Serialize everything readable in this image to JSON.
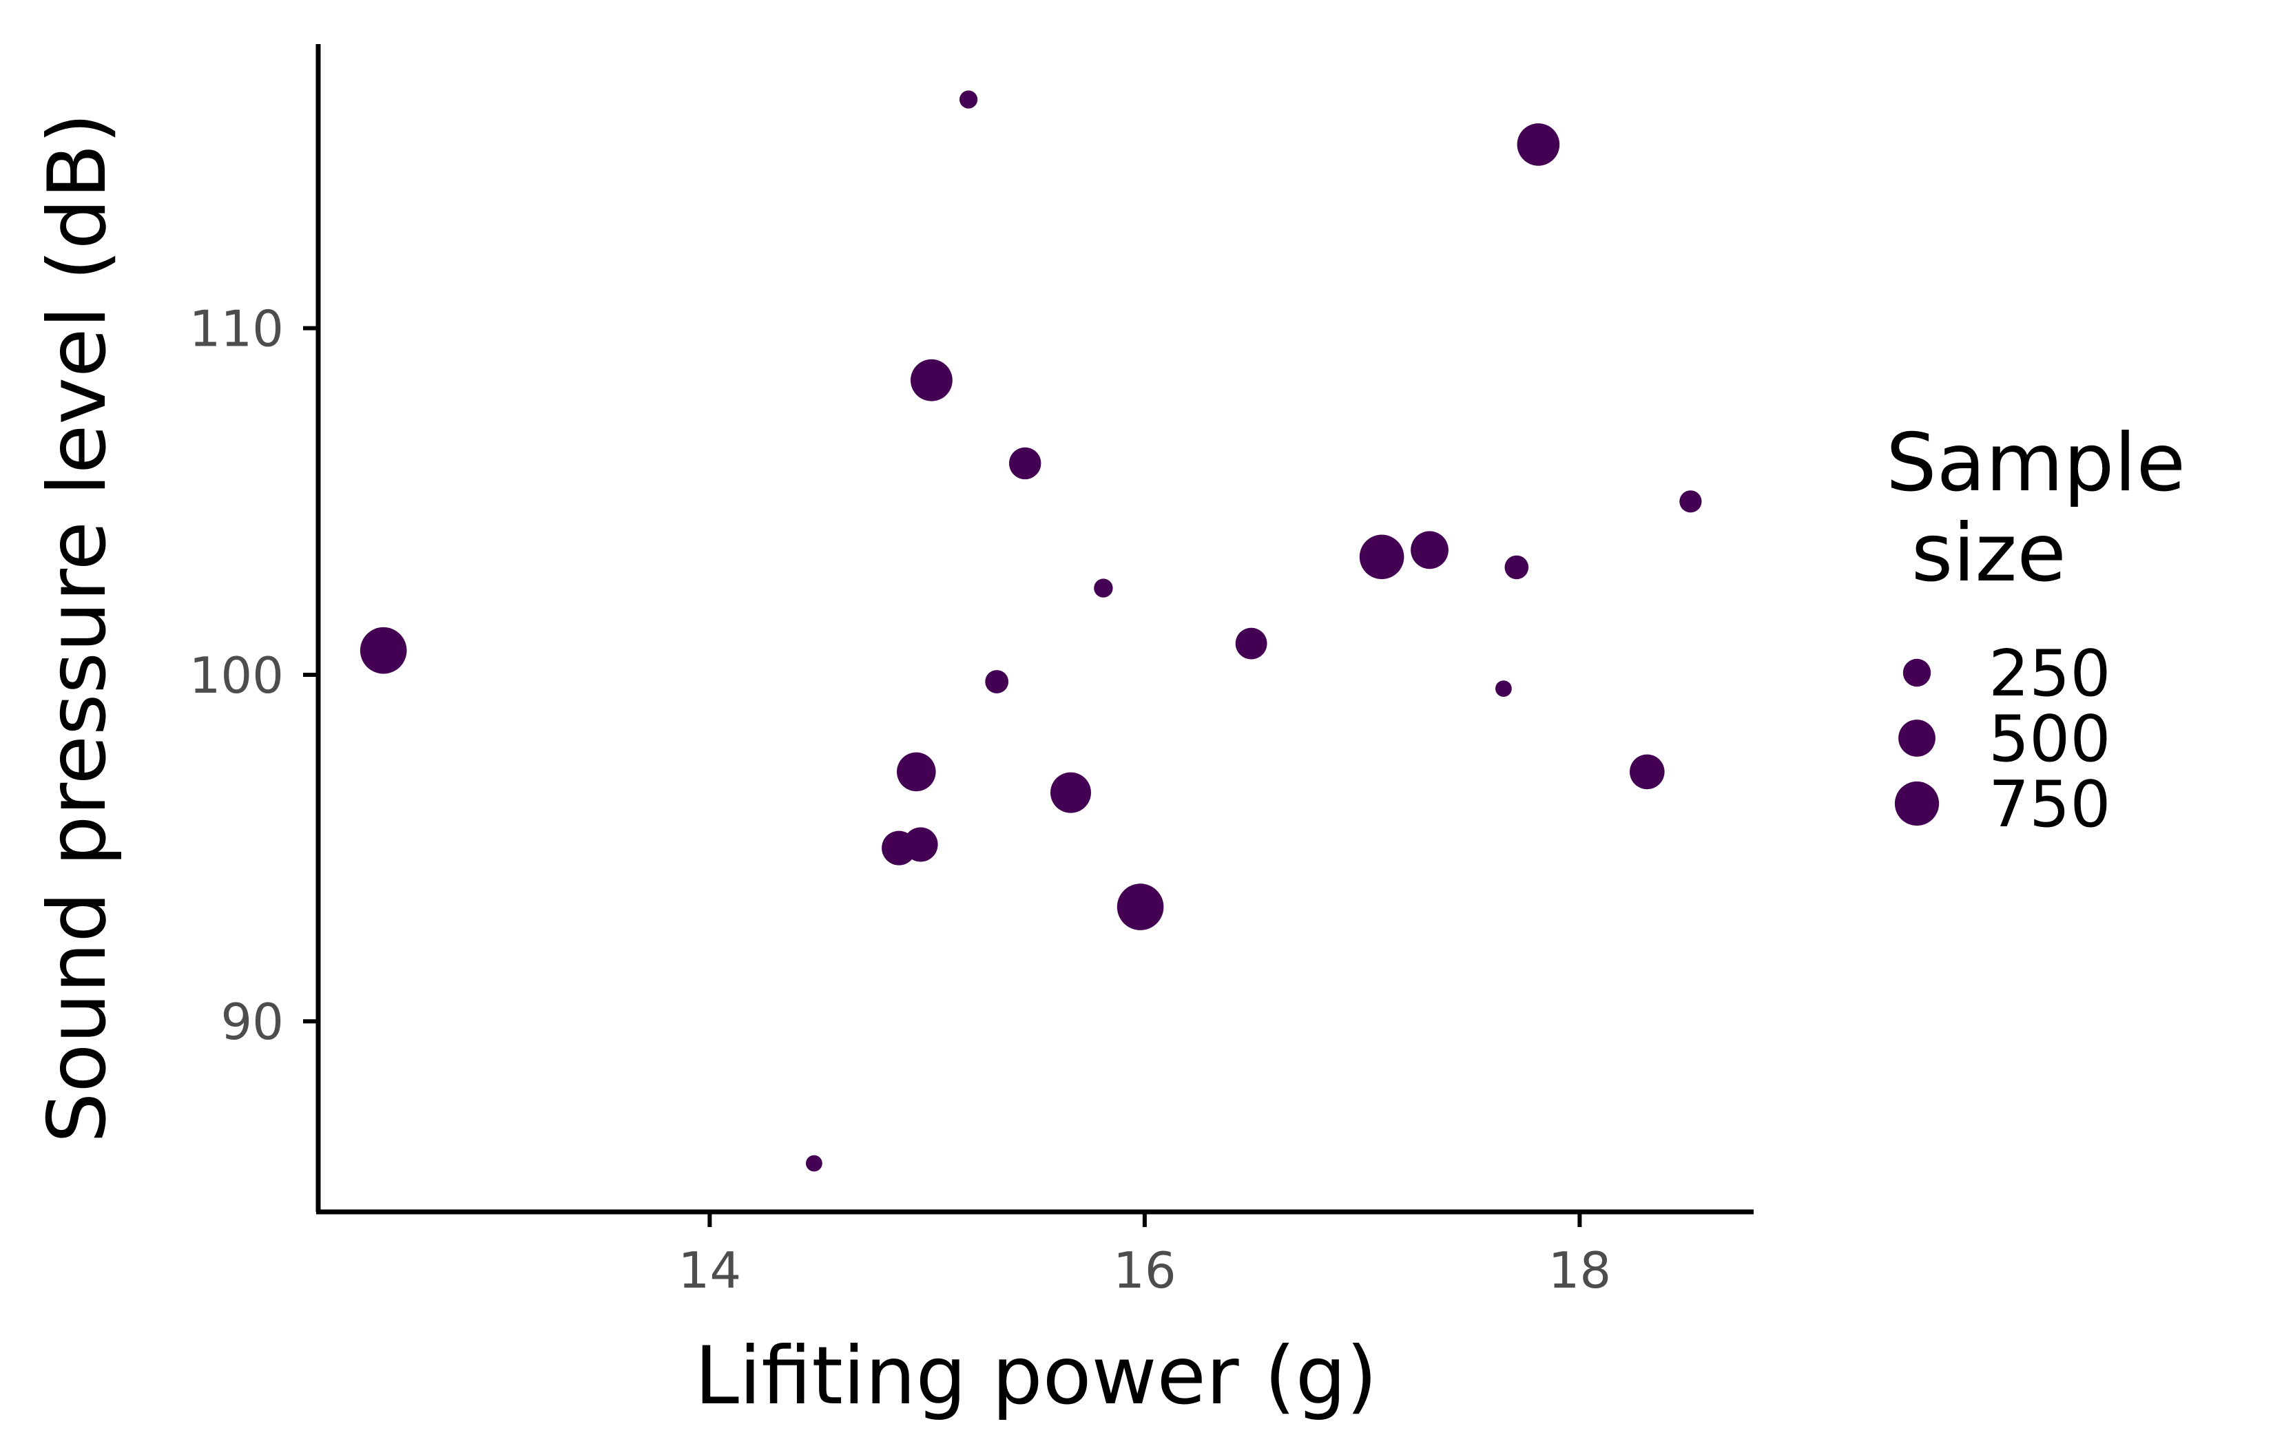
{
  "chart_data": {
    "type": "scatter",
    "xlabel": "Lifiting power (g)",
    "ylabel": "Sound pressure level (dB)",
    "xlim": [
      12.2,
      18.8
    ],
    "ylim": [
      84.5,
      118.2
    ],
    "xticks": [
      14,
      16,
      18
    ],
    "yticks": [
      90,
      100,
      110
    ],
    "point_color": "#440154",
    "grid": false,
    "legend": {
      "title_lines": [
        "Sample",
        " size"
      ],
      "placement": "right",
      "entries": [
        {
          "label": "250",
          "size": 250
        },
        {
          "label": "500",
          "size": 500
        },
        {
          "label": "750",
          "size": 750
        }
      ]
    },
    "points": [
      {
        "x": 12.5,
        "y": 100.7,
        "size": 840
      },
      {
        "x": 14.48,
        "y": 85.9,
        "size": 60
      },
      {
        "x": 14.87,
        "y": 95.0,
        "size": 420
      },
      {
        "x": 14.97,
        "y": 95.1,
        "size": 420
      },
      {
        "x": 14.95,
        "y": 97.2,
        "size": 560
      },
      {
        "x": 15.02,
        "y": 108.5,
        "size": 660
      },
      {
        "x": 15.19,
        "y": 116.6,
        "size": 80
      },
      {
        "x": 15.32,
        "y": 99.8,
        "size": 160
      },
      {
        "x": 15.45,
        "y": 106.1,
        "size": 350
      },
      {
        "x": 15.66,
        "y": 96.6,
        "size": 620
      },
      {
        "x": 15.81,
        "y": 102.5,
        "size": 90
      },
      {
        "x": 15.98,
        "y": 93.3,
        "size": 840
      },
      {
        "x": 16.49,
        "y": 100.9,
        "size": 340
      },
      {
        "x": 17.09,
        "y": 103.4,
        "size": 760
      },
      {
        "x": 17.31,
        "y": 103.6,
        "size": 520
      },
      {
        "x": 17.65,
        "y": 99.6,
        "size": 60
      },
      {
        "x": 17.71,
        "y": 103.1,
        "size": 170
      },
      {
        "x": 17.81,
        "y": 115.3,
        "size": 680
      },
      {
        "x": 18.31,
        "y": 97.2,
        "size": 430
      },
      {
        "x": 18.51,
        "y": 105.0,
        "size": 140
      }
    ]
  }
}
